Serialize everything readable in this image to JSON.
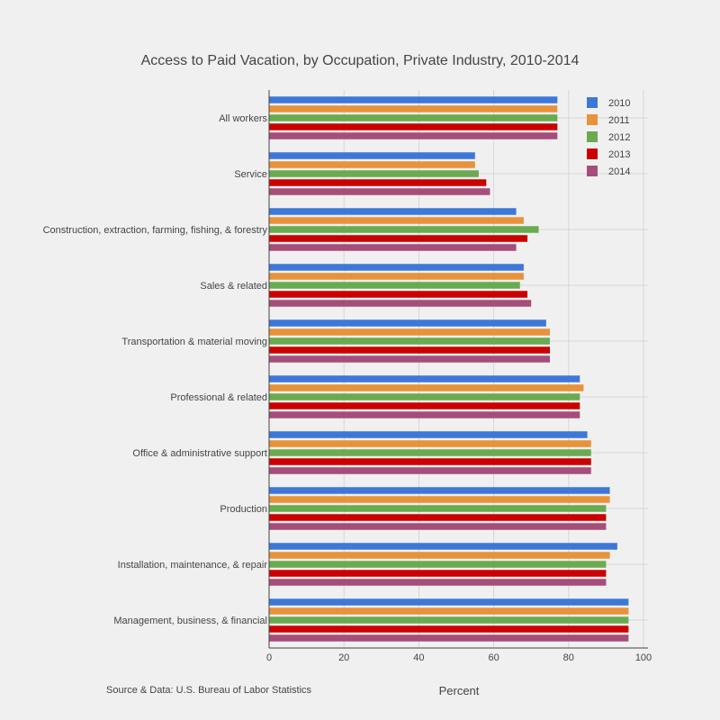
{
  "chart_data": {
    "type": "bar",
    "orientation": "horizontal",
    "title": "Access to Paid Vacation, by Occupation, Private Industry, 2010-2014",
    "xlabel": "Percent",
    "ylabel": "",
    "source": "Source & Data: U.S. Bureau of Labor Statistics",
    "xlim": [
      0,
      100
    ],
    "xticks": [
      0,
      20,
      40,
      60,
      80,
      100
    ],
    "grid": true,
    "legend_position": "top-right",
    "categories": [
      "All workers",
      "Service",
      "Construction, extraction, farming, fishing, & forestry",
      "Sales & related",
      "Transportation & material moving",
      "Professional & related",
      "Office & administrative support",
      "Production",
      "Installation, maintenance, & repair",
      "Management, business, & financial"
    ],
    "series": [
      {
        "name": "2010",
        "color": "#3d78d8",
        "values": [
          77,
          55,
          66,
          68,
          74,
          83,
          85,
          91,
          93,
          96
        ]
      },
      {
        "name": "2011",
        "color": "#e8923a",
        "values": [
          77,
          55,
          68,
          68,
          75,
          84,
          86,
          91,
          91,
          96
        ]
      },
      {
        "name": "2012",
        "color": "#6aaa50",
        "values": [
          77,
          56,
          72,
          67,
          75,
          83,
          86,
          90,
          90,
          96
        ]
      },
      {
        "name": "2013",
        "color": "#cc0000",
        "values": [
          77,
          58,
          69,
          69,
          75,
          83,
          86,
          90,
          90,
          96
        ]
      },
      {
        "name": "2014",
        "color": "#a64d79",
        "values": [
          77,
          59,
          66,
          70,
          75,
          83,
          86,
          90,
          90,
          96
        ]
      }
    ]
  }
}
